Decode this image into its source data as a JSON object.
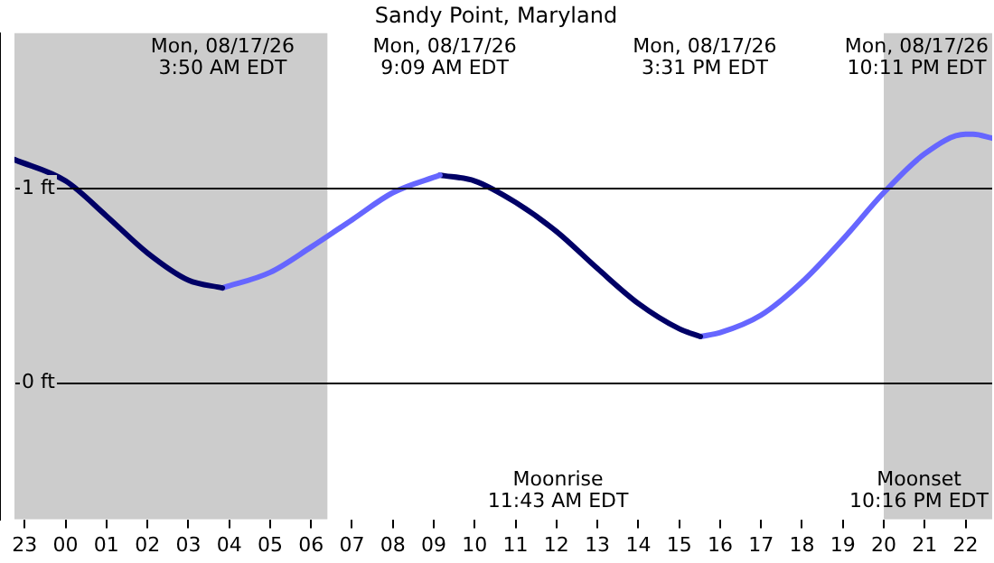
{
  "chart_data": {
    "type": "line",
    "title": "Sandy Point, Maryland",
    "xlim": [
      "--08-16T22:45",
      "--08-17T22:39"
    ],
    "xticks": [
      {
        "value": "--08-16T23:00",
        "label": "23"
      },
      {
        "value": "--08-17T00:00",
        "label": "00"
      },
      {
        "value": "--08-17T01:00",
        "label": "01"
      },
      {
        "value": "--08-17T02:00",
        "label": "02"
      },
      {
        "value": "--08-17T03:00",
        "label": "03"
      },
      {
        "value": "--08-17T04:00",
        "label": "04"
      },
      {
        "value": "--08-17T05:00",
        "label": "05"
      },
      {
        "value": "--08-17T06:00",
        "label": "06"
      },
      {
        "value": "--08-17T07:00",
        "label": "07"
      },
      {
        "value": "--08-17T08:00",
        "label": "08"
      },
      {
        "value": "--08-17T09:00",
        "label": "09"
      },
      {
        "value": "--08-17T10:00",
        "label": "10"
      },
      {
        "value": "--08-17T11:00",
        "label": "11"
      },
      {
        "value": "--08-17T12:00",
        "label": "12"
      },
      {
        "value": "--08-17T13:00",
        "label": "13"
      },
      {
        "value": "--08-17T14:00",
        "label": "14"
      },
      {
        "value": "--08-17T15:00",
        "label": "15"
      },
      {
        "value": "--08-17T16:00",
        "label": "16"
      },
      {
        "value": "--08-17T17:00",
        "label": "17"
      },
      {
        "value": "--08-17T18:00",
        "label": "18"
      },
      {
        "value": "--08-17T19:00",
        "label": "19"
      },
      {
        "value": "--08-17T20:00",
        "label": "20"
      },
      {
        "value": "--08-17T21:00",
        "label": "21"
      },
      {
        "value": "--08-17T22:00",
        "label": "22"
      }
    ],
    "ylim": [
      -0.7,
      1.8
    ],
    "yticks": [
      {
        "value": 0,
        "label": "0 ft"
      },
      {
        "value": 1,
        "label": "1 ft"
      }
    ],
    "grid": "y",
    "marker": "none",
    "series": [
      {
        "color": "#000066",
        "x": [
          "--08-16T22:45",
          "--08-17T00:00",
          "--08-17T01:00",
          "--08-17T02:00",
          "--08-17T03:00",
          "--08-17T03:50"
        ],
        "values": [
          1.15,
          1.04,
          0.86,
          0.67,
          0.53,
          0.49
        ]
      },
      {
        "color": "#6666ff",
        "x": [
          "--08-17T03:50",
          "--08-17T05:00",
          "--08-17T06:00",
          "--08-17T07:00",
          "--08-17T08:00",
          "--08-17T09:09"
        ],
        "values": [
          0.49,
          0.57,
          0.7,
          0.84,
          0.98,
          1.07
        ]
      },
      {
        "color": "#000066",
        "x": [
          "--08-17T09:09",
          "--08-17T10:00",
          "--08-17T11:00",
          "--08-17T12:00",
          "--08-17T13:00",
          "--08-17T14:00",
          "--08-17T15:00",
          "--08-17T15:31"
        ],
        "values": [
          1.07,
          1.04,
          0.93,
          0.78,
          0.59,
          0.41,
          0.28,
          0.24
        ]
      },
      {
        "color": "#6666ff",
        "x": [
          "--08-17T15:31",
          "--08-17T16:00",
          "--08-17T17:00",
          "--08-17T18:00",
          "--08-17T19:00",
          "--08-17T20:00",
          "--08-17T21:00",
          "--08-17T22:00",
          "--08-17T22:11",
          "--08-17T22:39"
        ],
        "values": [
          0.24,
          0.26,
          0.35,
          0.52,
          0.74,
          0.98,
          1.18,
          1.28,
          1.28,
          1.26
        ]
      }
    ],
    "bands": [
      {
        "axis": "x",
        "from": "--08-16T22:45",
        "to": "--08-17T06:24",
        "color": "#cccccc"
      },
      {
        "axis": "x",
        "from": "--08-17T20:00",
        "to": "--08-17T22:39",
        "color": "#cccccc"
      }
    ],
    "annotations": [
      "Mon, 08/17/26\n3:50 AM EDT",
      "Mon, 08/17/26\n9:09 AM EDT",
      "Mon, 08/17/26\n3:31 PM EDT",
      "Mon, 08/17/26\n10:11 PM EDT",
      "Moonrise\n11:43 AM EDT",
      "Moonset\n10:16 PM EDT"
    ]
  }
}
